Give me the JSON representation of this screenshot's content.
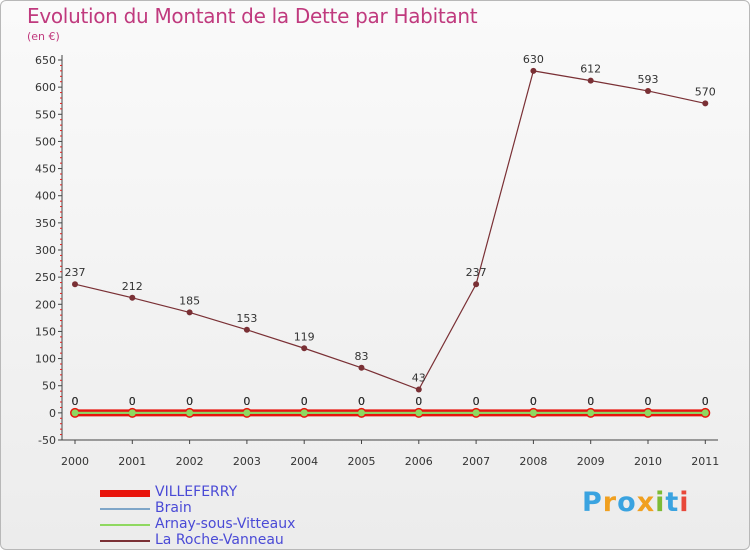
{
  "title": "Evolution du Montant de la Dette par Habitant",
  "unit_label": "(en €)",
  "logo": {
    "letters": [
      "P",
      "r",
      "o",
      "x",
      "i",
      "t",
      "i"
    ],
    "colors": [
      "#3aa3e0",
      "#f0a020",
      "#3aa3e0",
      "#f0a020",
      "#7dbb35",
      "#3aa3e0",
      "#e8483a"
    ]
  },
  "chart_data": {
    "type": "line",
    "title": "Evolution du Montant de la Dette par Habitant",
    "ylabel": "(en €)",
    "xlabel": "",
    "x": [
      "2000",
      "2001",
      "2002",
      "2003",
      "2004",
      "2005",
      "2006",
      "2007",
      "2008",
      "2009",
      "2010",
      "2011"
    ],
    "ylim": [
      -50,
      650
    ],
    "yticks": [
      "-50",
      "0",
      "50",
      "100",
      "150",
      "200",
      "250",
      "300",
      "350",
      "400",
      "450",
      "500",
      "550",
      "600",
      "650"
    ],
    "grid": false,
    "legend_position": "bottom-left",
    "series": [
      {
        "name": "VILLEFERRY",
        "color": "#e8140c",
        "values": [
          0,
          0,
          0,
          0,
          0,
          0,
          0,
          0,
          0,
          0,
          0,
          0
        ],
        "labels": [
          "0",
          "0",
          "0",
          "0",
          "0",
          "0",
          "0",
          "0",
          "0",
          "0",
          "0",
          "0"
        ]
      },
      {
        "name": "Brain",
        "color": "#7fa6c8",
        "values": [
          0,
          0,
          0,
          0,
          0,
          0,
          0,
          0,
          0,
          0,
          0,
          0
        ],
        "labels": [
          "0",
          "0",
          "0",
          "0",
          "0",
          "0",
          "0",
          "0",
          "0",
          "0",
          "0",
          "0"
        ]
      },
      {
        "name": "Arnay-sous-Vitteaux",
        "color": "#8fd860",
        "values": [
          0,
          0,
          0,
          0,
          0,
          0,
          0,
          0,
          0,
          0,
          0,
          0
        ],
        "labels": [
          "0",
          "0",
          "0",
          "0",
          "0",
          "0",
          "0",
          "0",
          "0",
          "0",
          "0",
          "0"
        ]
      },
      {
        "name": "La Roche-Vanneau",
        "color": "#7a3035",
        "values": [
          237,
          212,
          185,
          153,
          119,
          83,
          43,
          237,
          630,
          612,
          593,
          570
        ],
        "labels": [
          "237",
          "212",
          "185",
          "153",
          "119",
          "83",
          "43",
          "237",
          "630",
          "612",
          "593",
          "570"
        ]
      }
    ]
  }
}
